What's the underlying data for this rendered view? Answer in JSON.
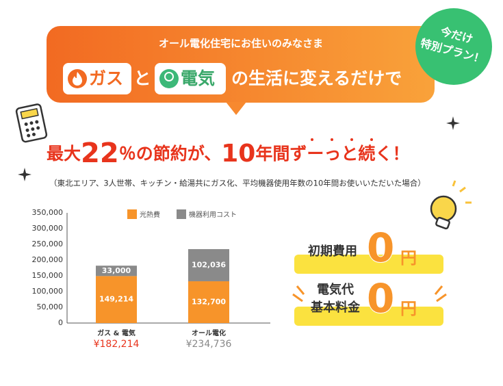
{
  "banner": {
    "subtitle": "オール電化住宅にお住いのみなさま",
    "gas": "ガス",
    "to": "と",
    "electric": "電気",
    "rest": "の生活に変えるだけで"
  },
  "badge": {
    "line1": "今だけ",
    "line2": "特別プラン！"
  },
  "headline": {
    "p1": "最大",
    "p2": "22",
    "p3": "％の節約が、",
    "p4": "10",
    "p5": "年間",
    "p6": "ずーっと",
    "p7": "続く！"
  },
  "note": "（東北エリア、3人世帯、キッチン・給湯共にガス化、平均機器使用年数の10年間お使いいただいた場合）",
  "chart_data": {
    "type": "stacked_bar",
    "categories": [
      "ガス & 電気",
      "オール電化"
    ],
    "series": [
      {
        "name": "光熱費",
        "color": "#f7942a",
        "values": [
          149214,
          132700
        ],
        "value_labels": [
          "149,214",
          "132,700"
        ]
      },
      {
        "name": "機器利用コスト",
        "color": "#8a8a8a",
        "values": [
          33000,
          102036
        ],
        "value_labels": [
          "33,000",
          "102,036"
        ]
      }
    ],
    "total_labels": [
      "¥182,214",
      "¥234,736"
    ],
    "total_colors": [
      "#e8341c",
      "#888888"
    ],
    "ylim": [
      0,
      350000
    ],
    "yticks": [
      0,
      {
        "value": 50000,
        "label": "50,000"
      },
      {
        "value": 100000,
        "label": "100,000"
      },
      {
        "value": 150000,
        "label": "150,000"
      },
      {
        "value": 200000,
        "label": "200,000"
      },
      {
        "value": 250000,
        "label": "250,000"
      },
      {
        "value": 300000,
        "label": "300,000"
      },
      {
        "value": 350000,
        "label": "350,000"
      }
    ],
    "grid": false
  },
  "offers": {
    "initial": "初期費用",
    "zero1": "0",
    "yen1": "円",
    "basic1": "電気代",
    "basic2": "基本料金",
    "zero2": "0",
    "yen2": "円"
  }
}
